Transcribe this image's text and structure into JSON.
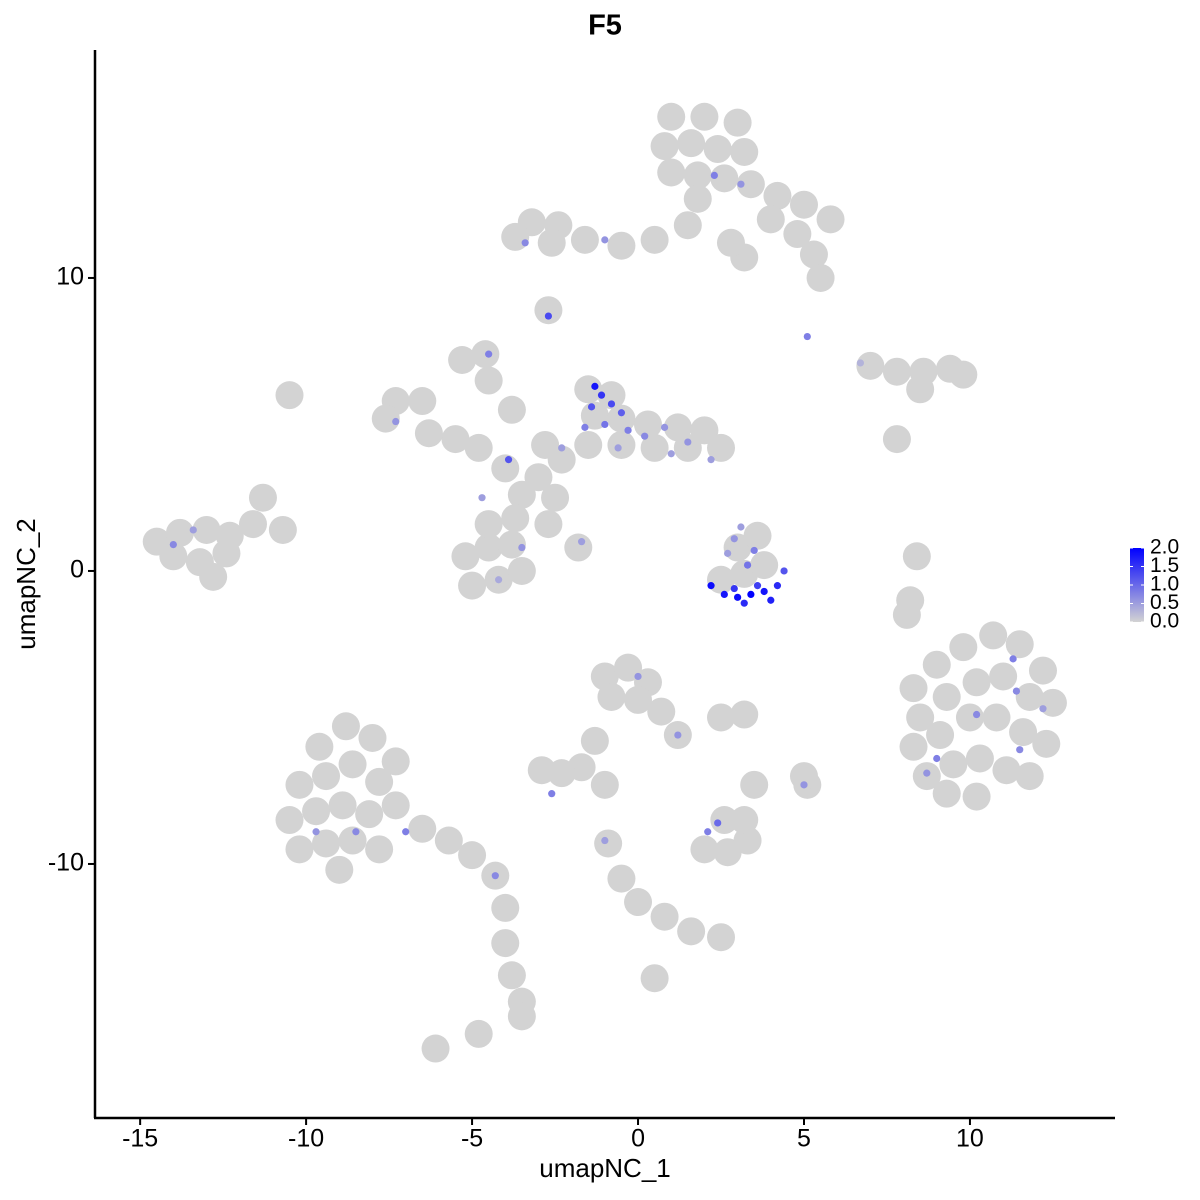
{
  "chart_data": {
    "type": "scatter",
    "title": "F5",
    "x_label": "umapNC_1",
    "y_label": "umapNC_2",
    "xlim": [
      -16.36,
      14.37
    ],
    "ylim": [
      -18.67,
      17.78
    ],
    "xticks": [
      -15,
      -10,
      -5,
      0,
      5,
      10
    ],
    "yticks": [
      -10,
      0,
      10
    ],
    "low_color": "#d3d3d3",
    "high_color": "#0000ff",
    "clim": [
      0,
      2
    ],
    "cticks": [
      {
        "value": 2,
        "label": "2.0"
      },
      {
        "value": 1.5,
        "label": "1.5"
      },
      {
        "value": 1,
        "label": "1.0"
      },
      {
        "value": 0.5,
        "label": "0.5"
      },
      {
        "value": 0,
        "label": "0.0"
      }
    ],
    "series": [
      {
        "color": "#d3d3d3",
        "x": [
          1,
          2,
          3,
          0.8,
          1.6,
          2.4,
          3.2,
          1,
          1.8,
          2.6,
          3.4,
          4.2,
          5,
          5.8,
          4,
          4.8,
          5.3,
          5.5,
          1.8,
          1.5,
          0.5,
          -0.5,
          -1.6,
          -2.4,
          -3.2,
          -2.6,
          -3.7,
          3.2,
          2.8,
          -2.7,
          7,
          7.8,
          8.6,
          9.4,
          9.8,
          8.5,
          7.8,
          -1.5,
          -0.8,
          -1.3,
          -0.5,
          0.3,
          1.2,
          2,
          2.5,
          1.5,
          0.5,
          -0.5,
          -1.5,
          -2.3,
          -3,
          -3.5,
          -2.5,
          -4,
          -4.8,
          -5.5,
          -6.3,
          -7.3,
          -6.5,
          -7.6,
          -5.3,
          -4.6,
          -4.5,
          -3.8,
          -2.8,
          -5.2,
          -4.5,
          -3.8,
          -5,
          -4.2,
          -3.5,
          -4.5,
          -3.7,
          -2.7,
          -1.8,
          -14.5,
          -13.8,
          -13,
          -12.3,
          -11.6,
          -11.3,
          -14,
          -13.2,
          -12.4,
          -12.8,
          -10.7,
          -10.5,
          8.3,
          9,
          9.8,
          10.7,
          11.5,
          12.2,
          8.5,
          9.3,
          10.2,
          11,
          11.8,
          12.5,
          8.3,
          9.1,
          10,
          10.8,
          11.6,
          12.3,
          8.7,
          9.5,
          10.3,
          11.1,
          11.8,
          9.3,
          10.2,
          8.4,
          8.1,
          8.2,
          -9.6,
          -8.8,
          -8,
          -7.3,
          -10.2,
          -9.4,
          -8.6,
          -7.8,
          -10.5,
          -9.7,
          -8.9,
          -8.1,
          -7.3,
          -10.2,
          -9.4,
          -8.6,
          -7.8,
          -9,
          -6.5,
          -5.7,
          -5,
          -4.3,
          -4,
          -4,
          -3.8,
          -3.5,
          -3.5,
          -6.1,
          -4.8,
          -1,
          -0.3,
          0.3,
          -0.8,
          0,
          0.7,
          1.2,
          -1.3,
          -1.7,
          -2.9,
          -2.3,
          -1,
          -0.9,
          -0.5,
          0,
          0.8,
          1.6,
          2.5,
          0.5,
          2.6,
          2,
          2.7,
          3.3,
          3.2,
          2.5,
          3.2,
          5.1,
          5,
          3.5,
          2.5,
          3.2,
          3.8,
          3,
          3.6
        ],
        "y": [
          15.5,
          15.5,
          15.3,
          14.5,
          14.6,
          14.4,
          14.3,
          13.6,
          13.5,
          13.4,
          13.2,
          12.8,
          12.5,
          12,
          12,
          11.5,
          10.8,
          10,
          12.7,
          11.8,
          11.3,
          11.1,
          11.3,
          11.8,
          11.9,
          11.2,
          11.4,
          10.7,
          11.2,
          8.9,
          7,
          6.8,
          6.8,
          6.9,
          6.7,
          6.2,
          4.5,
          6.2,
          6,
          5.3,
          5.2,
          5,
          4.9,
          4.8,
          4.2,
          4.2,
          4.2,
          4.3,
          4.3,
          3.8,
          3.2,
          2.6,
          2.5,
          3.5,
          4.2,
          4.5,
          4.7,
          5.8,
          5.8,
          5.2,
          7.2,
          7.4,
          6.5,
          5.5,
          4.3,
          0.5,
          0.8,
          0.9,
          -0.5,
          -0.3,
          0,
          1.6,
          1.8,
          1.6,
          0.8,
          1,
          1.3,
          1.4,
          1.2,
          1.6,
          2.5,
          0.5,
          0.3,
          0.6,
          -0.2,
          1.4,
          6,
          -4,
          -3.2,
          -2.6,
          -2.2,
          -2.5,
          -3.4,
          -5,
          -4.3,
          -3.8,
          -3.6,
          -4.3,
          -4.5,
          -6,
          -5.6,
          -5,
          -5,
          -5.5,
          -5.9,
          -7,
          -6.6,
          -6.4,
          -6.8,
          -7,
          -7.6,
          -7.7,
          0.5,
          -1.5,
          -1,
          -6,
          -5.3,
          -5.7,
          -6.5,
          -7.3,
          -7,
          -6.6,
          -7.2,
          -8.5,
          -8.2,
          -8,
          -8.3,
          -8,
          -9.5,
          -9.3,
          -9.2,
          -9.5,
          -10.2,
          -8.8,
          -9.2,
          -9.7,
          -10.4,
          -11.5,
          -12.7,
          -13.8,
          -14.7,
          -15.2,
          -16.3,
          -15.8,
          -3.6,
          -3.3,
          -3.8,
          -4.3,
          -4.4,
          -4.8,
          -5.6,
          -5.8,
          -6.7,
          -6.8,
          -6.9,
          -7.3,
          -9.3,
          -10.5,
          -11.3,
          -11.8,
          -12.3,
          -12.5,
          -13.9,
          -8.5,
          -9.5,
          -9.6,
          -9.2,
          -8.5,
          -5,
          -4.9,
          -7.3,
          -7,
          -7.3,
          -0.3,
          -0.1,
          0.2,
          0.8,
          1.2
        ]
      },
      {
        "x": [
          -1.3,
          -1.1,
          -0.8,
          -1.4,
          -0.5,
          -1.0,
          -0.3,
          0.2,
          0.8,
          1.5,
          2.2,
          -1.6,
          -0.6,
          1.0,
          -2.3,
          -3.9,
          -4.5,
          -7.3,
          -4.7,
          -3.5,
          -4.2,
          -1.7,
          2.2,
          2.6,
          3.0,
          3.4,
          3.8,
          4.2,
          2.9,
          3.6,
          4.4,
          3.3,
          3.5,
          2.9,
          3.1,
          2.7,
          4.0,
          3.2,
          -14,
          -13.4,
          11.3,
          11.4,
          10.2,
          9.0,
          11.5,
          8.7,
          -9.7,
          -8.5,
          -7,
          -4.3,
          0,
          2.1,
          2.4,
          5,
          -2.6,
          1.2,
          -1,
          12.2,
          2.3,
          3.1,
          -3.4,
          -1,
          -2.7,
          5.1,
          6.7
        ],
        "y": [
          6.3,
          6.0,
          5.7,
          5.6,
          5.4,
          5.0,
          4.8,
          4.6,
          4.9,
          4.4,
          3.8,
          4.9,
          4.2,
          4.0,
          4.2,
          3.8,
          7.4,
          5.1,
          2.5,
          0.8,
          -0.3,
          1.0,
          -0.5,
          -0.8,
          -0.9,
          -0.8,
          -0.7,
          -0.5,
          -0.6,
          -0.5,
          0.0,
          0.2,
          0.7,
          1.1,
          1.5,
          0.6,
          -1.0,
          -1.1,
          0.9,
          1.4,
          -3.0,
          -4.1,
          -4.9,
          -6.4,
          -6.1,
          -6.9,
          -8.9,
          -8.9,
          -8.9,
          -10.4,
          -3.6,
          -8.9,
          -8.6,
          -7.3,
          -7.6,
          -5.6,
          -9.2,
          -4.7,
          13.5,
          13.2,
          11.2,
          11.3,
          8.7,
          8.0,
          7.1
        ],
        "values": [
          1.8,
          1.5,
          1.3,
          1.2,
          1.1,
          0.9,
          0.8,
          0.7,
          0.6,
          0.6,
          0.5,
          0.8,
          0.5,
          0.5,
          0.5,
          1.2,
          0.8,
          0.6,
          0.5,
          0.6,
          0.4,
          0.5,
          1.9,
          1.8,
          1.9,
          2.0,
          1.8,
          1.6,
          1.5,
          1.4,
          1.2,
          0.9,
          0.8,
          0.6,
          0.5,
          0.5,
          1.7,
          1.6,
          0.7,
          0.5,
          0.8,
          0.7,
          0.7,
          0.8,
          0.7,
          0.6,
          0.6,
          0.7,
          0.8,
          0.7,
          0.6,
          0.8,
          1.0,
          0.6,
          0.8,
          0.6,
          0.5,
          0.5,
          0.8,
          0.6,
          0.7,
          0.6,
          1.3,
          0.8,
          0.3
        ]
      }
    ]
  }
}
